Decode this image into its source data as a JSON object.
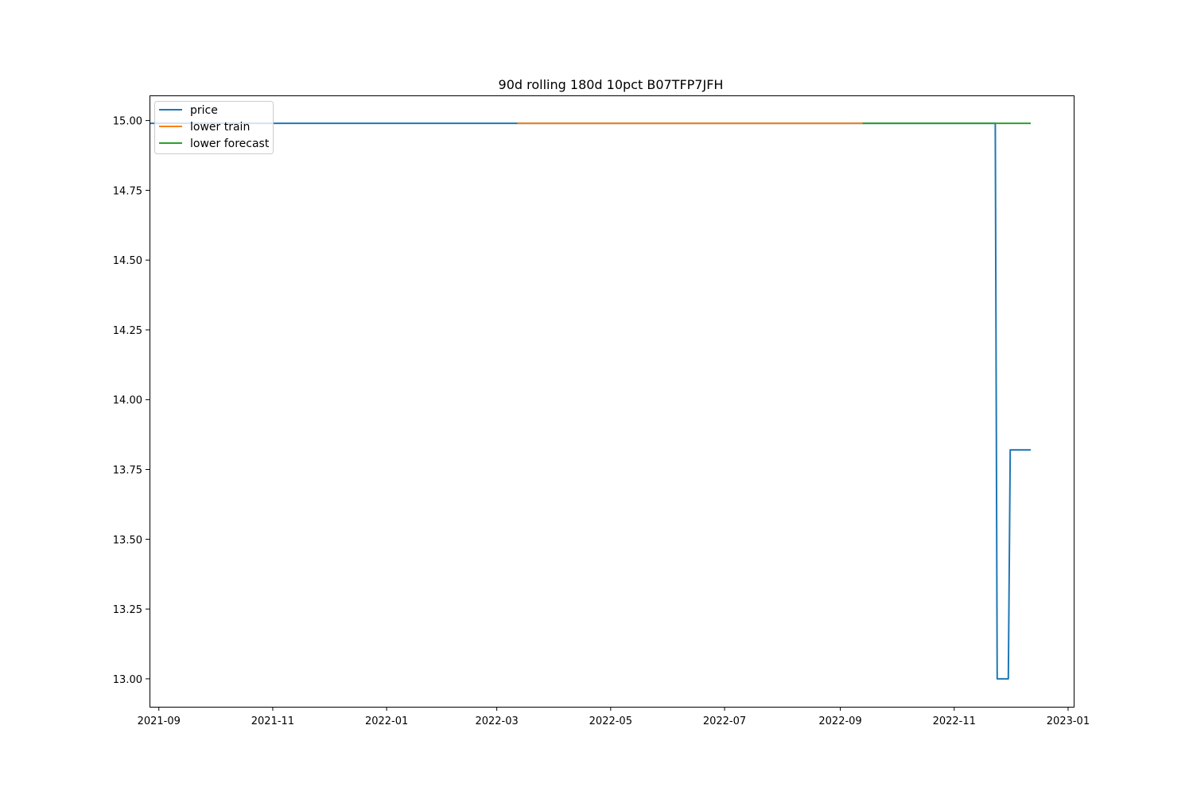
{
  "chart_data": {
    "type": "line",
    "title": "90d rolling 180d 10pct B07TFP7JFH",
    "xlabel": "",
    "ylabel": "",
    "x_axis": "date",
    "xlim": [
      "2021-08-27",
      "2023-01-04"
    ],
    "ylim": [
      12.9,
      15.09
    ],
    "x_ticks": [
      "2021-09-01",
      "2021-11-01",
      "2022-01-01",
      "2022-03-01",
      "2022-05-01",
      "2022-07-01",
      "2022-09-01",
      "2022-11-01",
      "2023-01-01"
    ],
    "x_tick_labels": [
      "2021-09",
      "2021-11",
      "2022-01",
      "2022-03",
      "2022-05",
      "2022-07",
      "2022-09",
      "2022-11",
      "2023-01"
    ],
    "y_ticks": [
      13.0,
      13.25,
      13.5,
      13.75,
      14.0,
      14.25,
      14.5,
      14.75,
      15.0
    ],
    "y_tick_labels": [
      "13.00",
      "13.25",
      "13.50",
      "13.75",
      "14.00",
      "14.25",
      "14.50",
      "14.75",
      "15.00"
    ],
    "grid": false,
    "legend_position": "top-left",
    "series": [
      {
        "name": "price",
        "color": "#1f77b4",
        "x": [
          "2021-08-27",
          "2022-11-23",
          "2022-11-24",
          "2022-11-30",
          "2022-12-01",
          "2022-12-12"
        ],
        "y": [
          14.99,
          14.99,
          13.0,
          13.0,
          13.82,
          13.82
        ]
      },
      {
        "name": "lower train",
        "color": "#ff7f0e",
        "x": [
          "2022-03-12",
          "2022-09-13"
        ],
        "y": [
          14.99,
          14.99
        ]
      },
      {
        "name": "lower forecast",
        "color": "#2ca02c",
        "x": [
          "2022-09-13",
          "2022-12-12"
        ],
        "y": [
          14.99,
          14.99
        ]
      }
    ]
  }
}
